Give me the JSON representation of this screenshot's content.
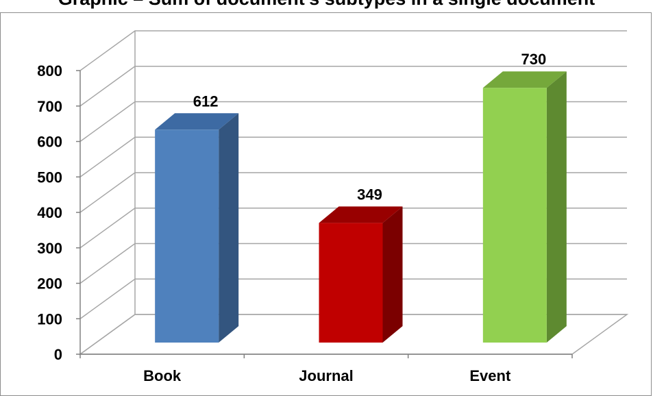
{
  "chart_data": {
    "type": "bar",
    "title": "Graphic – Sum of document's subtypes in a single document",
    "categories": [
      "Book",
      "Journal",
      "Event"
    ],
    "values": [
      612,
      349,
      730
    ],
    "data_labels": [
      "612",
      "349",
      "730"
    ],
    "ylim": [
      0,
      800
    ],
    "yticks": [
      0,
      100,
      200,
      300,
      400,
      500,
      600,
      700,
      800
    ],
    "ytick_labels": [
      "0",
      "100",
      "200",
      "300",
      "400",
      "500",
      "600",
      "700",
      "800"
    ],
    "grid": true,
    "legend": "none",
    "style": "3d-column",
    "colors": [
      "#4f81bd",
      "#c00000",
      "#92d050"
    ],
    "side_colors": [
      "#33557f",
      "#7b0000",
      "#5e8a30"
    ],
    "top_colors": [
      "#3d6aa3",
      "#980000",
      "#75a83b"
    ]
  }
}
